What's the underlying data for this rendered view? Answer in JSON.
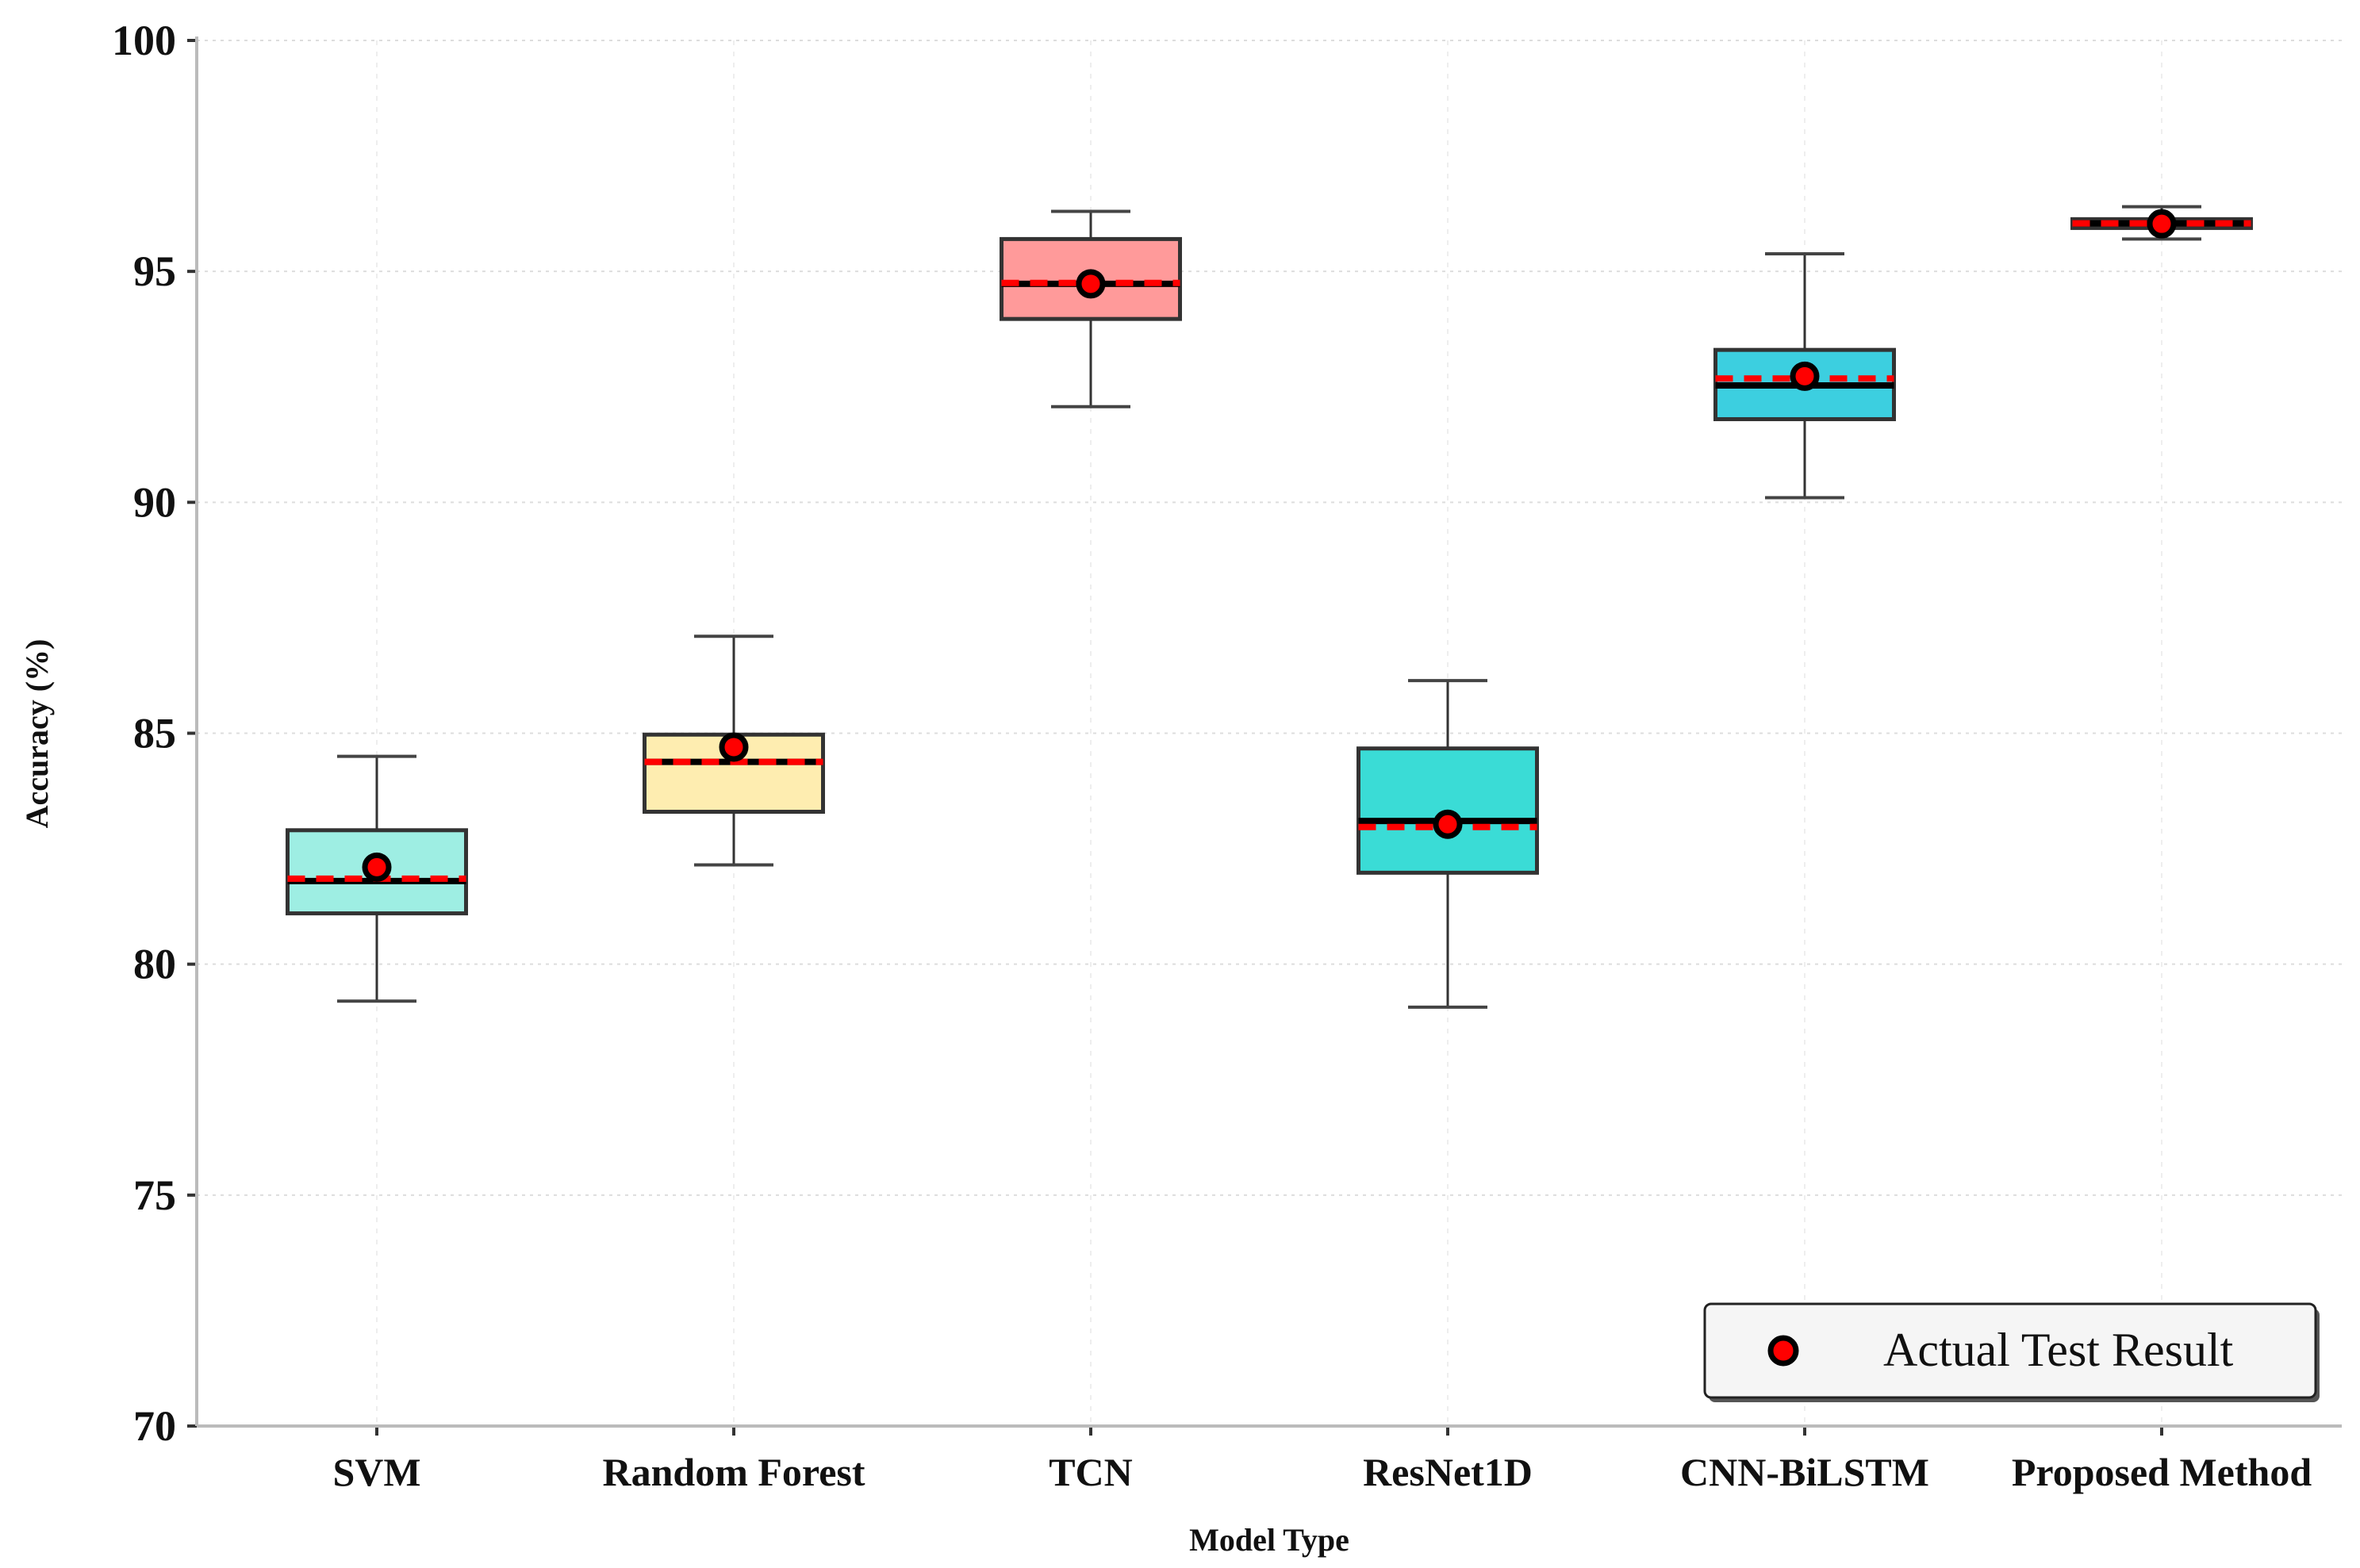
{
  "chart_data": {
    "type": "box",
    "title": "",
    "xlabel": "Model Type",
    "ylabel": "Accuracy (%)",
    "ylim": [
      70,
      100
    ],
    "yticks": [
      70,
      75,
      80,
      85,
      90,
      95,
      100
    ],
    "grid": true,
    "legend": {
      "entries": [
        "Actual Test Result"
      ],
      "placement": "bottom-right"
    },
    "categories": [
      "SVM",
      "Random Forest",
      "TCN",
      "ResNet1D",
      "CNN-BiLSTM",
      "Proposed Method"
    ],
    "boxes": [
      {
        "name": "SVM",
        "whisker_low": 79.2,
        "q1": 81.1,
        "median": 81.8,
        "mean": 81.85,
        "q3": 82.9,
        "whisker_high": 84.5,
        "actual": 82.1,
        "color": "#9eeee3"
      },
      {
        "name": "Random Forest",
        "whisker_low": 82.15,
        "q1": 83.3,
        "median": 84.38,
        "mean": 84.38,
        "q3": 84.97,
        "whisker_high": 87.1,
        "actual": 84.7,
        "color": "#feedb0"
      },
      {
        "name": "TCN",
        "whisker_low": 92.07,
        "q1": 93.97,
        "median": 94.73,
        "mean": 94.75,
        "q3": 95.7,
        "whisker_high": 96.3,
        "actual": 94.73,
        "color": "#ff9a9a"
      },
      {
        "name": "ResNet1D",
        "whisker_low": 79.07,
        "q1": 81.98,
        "median": 83.1,
        "mean": 82.97,
        "q3": 84.67,
        "whisker_high": 86.14,
        "actual": 83.03,
        "color": "#3adcd6"
      },
      {
        "name": "CNN-BiLSTM",
        "whisker_low": 90.1,
        "q1": 91.8,
        "median": 92.53,
        "mean": 92.68,
        "q3": 93.3,
        "whisker_high": 95.38,
        "actual": 92.73,
        "color": "#3ccfe0"
      },
      {
        "name": "Proposed Method",
        "whisker_low": 95.7,
        "q1": 95.94,
        "median": 96.04,
        "mean": 96.04,
        "q3": 96.13,
        "whisker_high": 96.4,
        "actual": 96.03,
        "color": "#3ccfe0"
      }
    ]
  }
}
